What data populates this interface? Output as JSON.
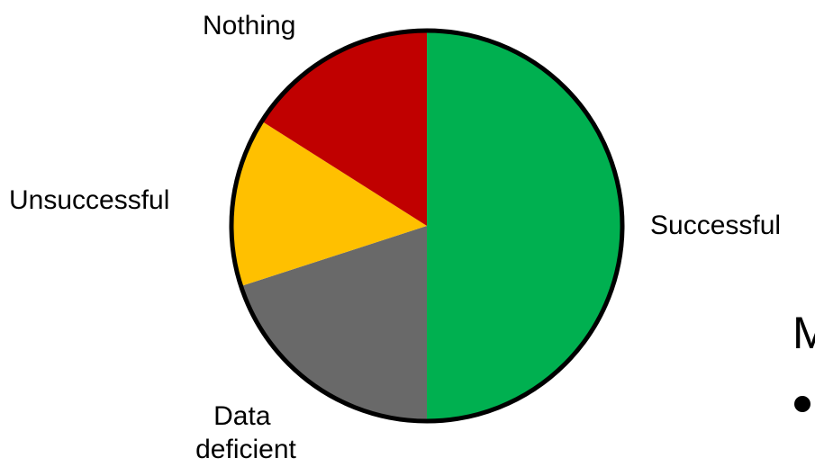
{
  "chart_data": {
    "type": "pie",
    "title": "",
    "slices": [
      {
        "label": "Successful",
        "value": 50,
        "color": "#00b050"
      },
      {
        "label": "Data deficient",
        "value": 20,
        "color": "#696969"
      },
      {
        "label": "Unsuccessful",
        "value": 14,
        "color": "#ffc000"
      },
      {
        "label": "Nothing",
        "value": 16,
        "color": "#c00000"
      }
    ],
    "outline_color": "#000000"
  },
  "cutoff": {
    "heading_fragment": "M",
    "bullet": "•"
  }
}
